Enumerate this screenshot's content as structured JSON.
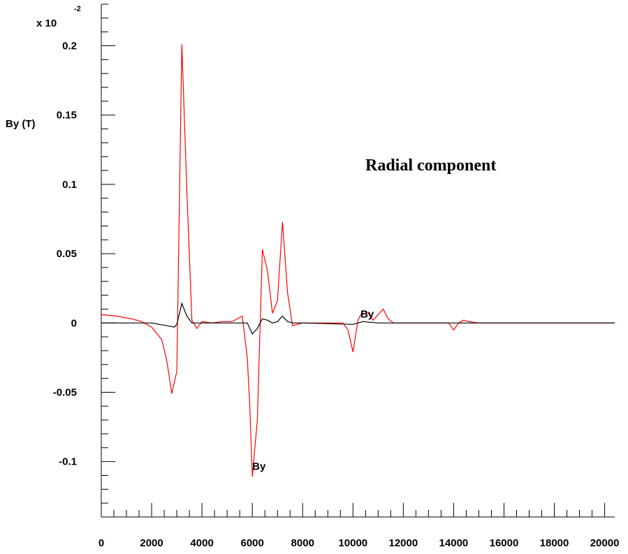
{
  "chart_data": {
    "type": "line",
    "title": "",
    "ylabel": "By (T)",
    "xlabel": "",
    "y_multiplier": {
      "base": "x 10",
      "exponent": "-2"
    },
    "xlim": [
      0,
      20400
    ],
    "ylim": [
      -0.14,
      0.23
    ],
    "xticks": [
      0,
      2000,
      4000,
      6000,
      8000,
      10000,
      12000,
      14000,
      16000,
      18000,
      20000
    ],
    "xtick_labels": [
      "0",
      "2000",
      "4000",
      "6000",
      "8000",
      "10000",
      "12000",
      "14000",
      "16000",
      "18000",
      "20000"
    ],
    "yticks": [
      -0.1,
      -0.05,
      0,
      0.05,
      0.1,
      0.15,
      0.2
    ],
    "ytick_labels": [
      "-0.1",
      "-0.05",
      "0",
      "0.05",
      "0.1",
      "0.15",
      "0.2"
    ],
    "grid": false,
    "annotation": "Radial component",
    "series": [
      {
        "name": "By",
        "color": "#ff0000",
        "x": [
          0,
          600,
          1200,
          1600,
          2000,
          2400,
          2600,
          2800,
          3000,
          3200,
          3400,
          3600,
          3800,
          4000,
          4400,
          4800,
          5200,
          5600,
          5800,
          5900,
          6000,
          6200,
          6400,
          6600,
          6800,
          7000,
          7200,
          7400,
          7600,
          8000,
          9600,
          9800,
          10000,
          10200,
          10400,
          10600,
          10800,
          11000,
          11200,
          11400,
          11600,
          12000,
          13000,
          13800,
          14000,
          14200,
          14400,
          14600,
          15000,
          16000,
          18000,
          20400
        ],
        "y": [
          0.006,
          0.005,
          0.003,
          0.001,
          -0.003,
          -0.012,
          -0.027,
          -0.051,
          -0.035,
          0.201,
          0.095,
          0.002,
          -0.004,
          0.001,
          0.0,
          0.001,
          0.001,
          0.005,
          -0.025,
          -0.06,
          -0.111,
          -0.07,
          0.053,
          0.038,
          0.007,
          0.016,
          0.073,
          0.022,
          -0.002,
          0.0,
          0.0,
          -0.005,
          -0.021,
          0.002,
          0.009,
          0.007,
          0.002,
          0.006,
          0.01,
          0.003,
          0.0,
          0.0,
          0.0,
          0.0,
          -0.005,
          0.0,
          0.002,
          0.001,
          0.0,
          0.0,
          0.0,
          0.0
        ]
      },
      {
        "name": "By",
        "color": "#000000",
        "x": [
          0,
          1000,
          2000,
          2600,
          2900,
          3000,
          3200,
          3400,
          3600,
          3800,
          4000,
          4800,
          5400,
          5800,
          6000,
          6200,
          6400,
          6600,
          6800,
          7000,
          7200,
          7400,
          7600,
          8000,
          10000,
          10400,
          11000,
          12000,
          16000,
          20400
        ],
        "y": [
          0.0,
          0.0,
          0.0,
          -0.002,
          -0.003,
          -0.001,
          0.014,
          0.005,
          0.0,
          0.0,
          0.0,
          0.0,
          0.0,
          0.0,
          -0.008,
          -0.004,
          0.003,
          0.002,
          0.0,
          0.001,
          0.005,
          0.001,
          0.0,
          0.0,
          -0.001,
          0.001,
          0.0,
          0.0,
          0.0,
          0.0
        ]
      }
    ],
    "curve_labels": [
      {
        "text": "By",
        "x": 6000,
        "y": -0.106
      },
      {
        "text": "By",
        "x": 10300,
        "y": 0.004
      }
    ]
  }
}
